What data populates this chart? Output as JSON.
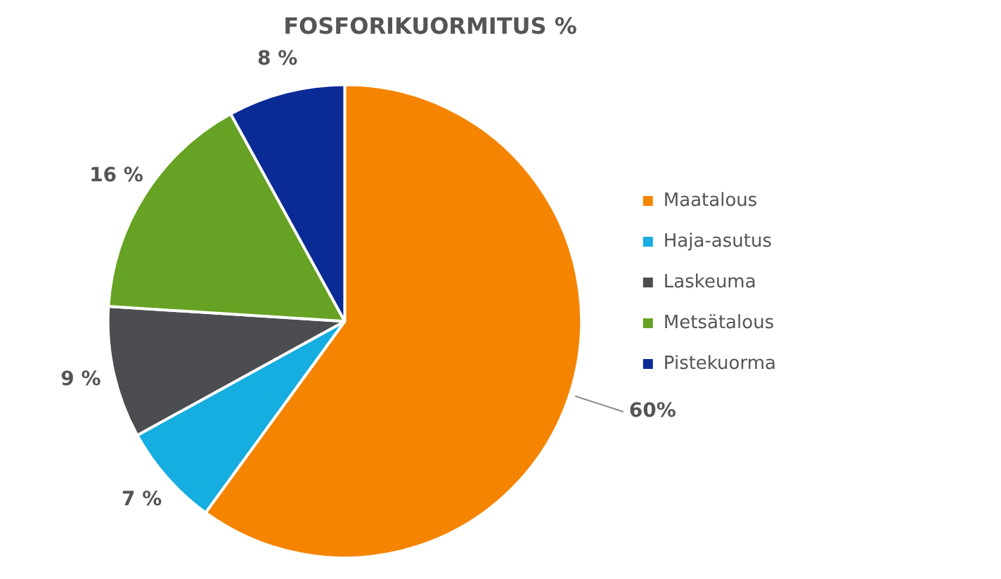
{
  "chart_data": {
    "type": "pie",
    "title": "FOSFORIKUORMITUS %",
    "categories": [
      "Maatalous",
      "Haja-asutus",
      "Laskeuma",
      "Metsätalous",
      "Pistekuorma"
    ],
    "values": [
      60,
      7,
      9,
      16,
      8
    ],
    "colors": [
      "#f58400",
      "#16ade0",
      "#4b4d51",
      "#66a223",
      "#0a2a96"
    ],
    "value_labels": [
      "60%",
      "7 %",
      "9 %",
      "16 %",
      "8 %"
    ],
    "legend": "right"
  }
}
